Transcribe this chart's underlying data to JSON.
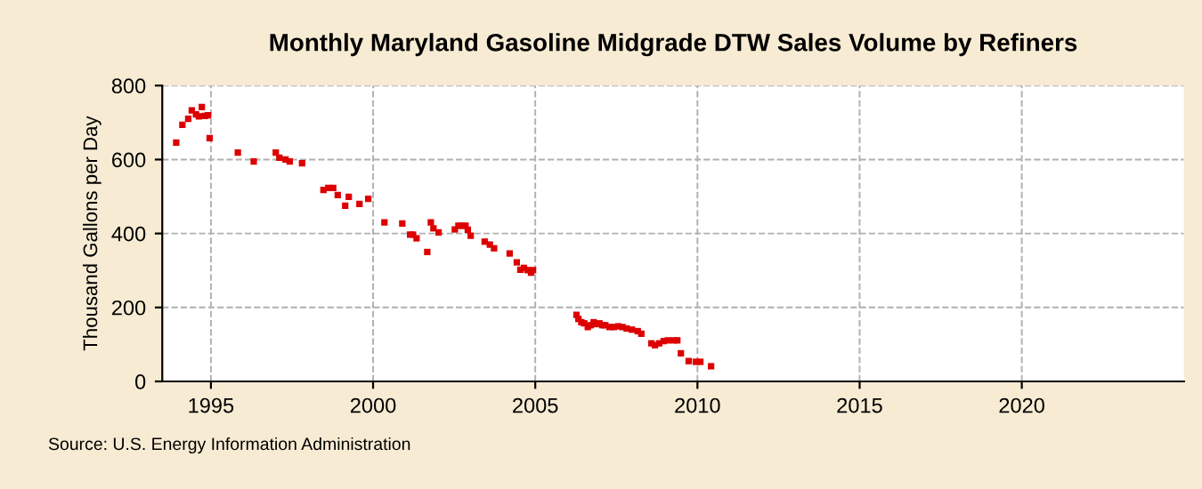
{
  "chart_data": {
    "type": "scatter",
    "title": "Monthly Maryland Gasoline Midgrade DTW Sales Volume by Refiners",
    "ylabel": "Thousand Gallons per Day",
    "annotations": [
      "Source: U.S. Energy Information Administration"
    ],
    "x": [
      1993.93,
      1994.12,
      1994.3,
      1994.41,
      1994.54,
      1994.63,
      1994.72,
      1994.82,
      1994.91,
      1994.96,
      1995.83,
      1996.32,
      1997.0,
      1997.11,
      1997.3,
      1997.43,
      1997.81,
      1998.47,
      1998.62,
      1998.77,
      1998.91,
      1999.14,
      1999.25,
      1999.58,
      1999.85,
      2000.35,
      2000.9,
      2001.14,
      2001.23,
      2001.34,
      2001.67,
      2001.78,
      2001.86,
      2002.02,
      2002.52,
      2002.63,
      2002.74,
      2002.85,
      2002.92,
      2003.01,
      2003.44,
      2003.6,
      2003.73,
      2004.21,
      2004.43,
      2004.54,
      2004.65,
      2004.76,
      2004.87,
      2004.93,
      2006.27,
      2006.33,
      2006.42,
      2006.51,
      2006.62,
      2006.71,
      2006.8,
      2006.89,
      2006.98,
      2007.07,
      2007.16,
      2007.29,
      2007.42,
      2007.56,
      2007.69,
      2007.82,
      2007.98,
      2008.16,
      2008.27,
      2008.58,
      2008.69,
      2008.82,
      2008.96,
      2009.09,
      2009.27,
      2009.38,
      2009.49,
      2009.73,
      2009.95,
      2010.09,
      2010.42
    ],
    "series": [
      {
        "color": "#dd0000",
        "values": [
          646,
          694,
          710,
          733,
          722,
          717,
          742,
          718,
          720,
          658,
          619,
          595,
          619,
          605,
          600,
          595,
          590,
          518,
          523,
          523,
          504,
          475,
          499,
          480,
          494,
          430,
          427,
          397,
          397,
          387,
          350,
          430,
          414,
          403,
          411,
          421,
          421,
          421,
          410,
          394,
          378,
          370,
          360,
          346,
          322,
          302,
          307,
          301,
          294,
          301,
          180,
          169,
          160,
          157,
          147,
          152,
          160,
          155,
          157,
          152,
          152,
          147,
          147,
          149,
          147,
          143,
          140,
          136,
          129,
          103,
          98,
          103,
          109,
          111,
          111,
          111,
          76,
          55,
          53,
          53,
          41
        ]
      }
    ],
    "xlim": [
      1993.5,
      2025
    ],
    "xticks": [
      1995,
      2000,
      2005,
      2010,
      2015,
      2020
    ],
    "ylim": [
      0,
      800
    ],
    "yticks": [
      0,
      200,
      400,
      600,
      800
    ],
    "grid": true,
    "marker": "square",
    "legend": false
  }
}
